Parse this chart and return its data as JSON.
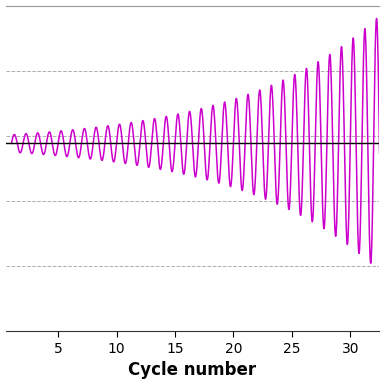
{
  "title": "",
  "xlabel": "Cycle number",
  "xlabel_fontsize": 12,
  "xlabel_fontweight": "bold",
  "line_color": "#CC00CC",
  "hline_color": "#000000",
  "background_color": "#ffffff",
  "grid_color": "#999999",
  "xlim": [
    0.5,
    32.5
  ],
  "ylim": [
    -1.5,
    1.1
  ],
  "xticks": [
    5,
    10,
    15,
    20,
    25,
    30
  ],
  "num_cycles": 32,
  "points_per_cycle": 80,
  "growth_rate": 0.085,
  "initial_amplitude": 0.07,
  "line_width": 1.1,
  "figsize": [
    3.85,
    3.85
  ],
  "dpi": 100
}
